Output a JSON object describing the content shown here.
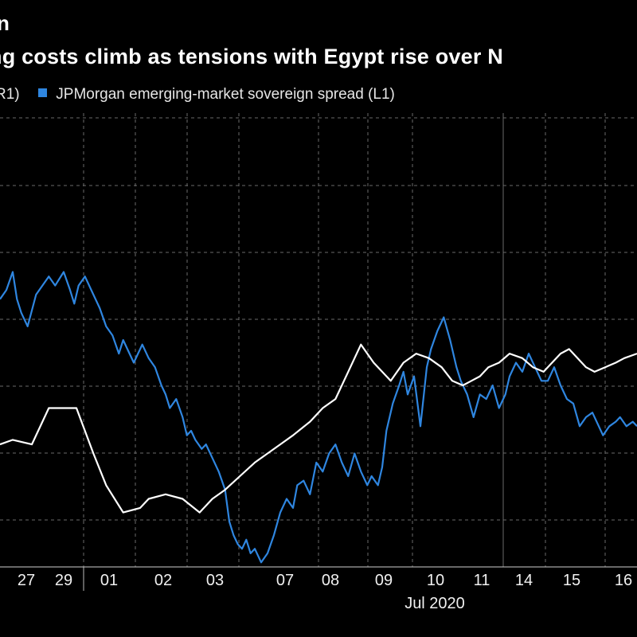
{
  "title": "n",
  "subtitle": "ng costs climb as tensions with Egypt rise over N",
  "legend": [
    {
      "label": "R1)",
      "color": "#ffffff"
    },
    {
      "label": "JPMorgan emerging-market sovereign spread (L1)",
      "color": "#2f86e0"
    }
  ],
  "chart_data": {
    "type": "line",
    "x_ticks": [
      "27",
      "29",
      "01",
      "02",
      "03",
      "07",
      "08",
      "09",
      "10",
      "11",
      "14",
      "15",
      "16"
    ],
    "x_group_label": "Jul 2020",
    "series": [
      {
        "name": "JPMorgan emerging-market sovereign spread (L1)",
        "axis": "L1",
        "color": "#2f86e0",
        "values": [
          [
            26.0,
            59
          ],
          [
            26.3,
            61
          ],
          [
            26.6,
            65
          ],
          [
            26.8,
            59
          ],
          [
            27.0,
            56
          ],
          [
            27.3,
            53
          ],
          [
            27.7,
            60
          ],
          [
            28.0,
            62
          ],
          [
            28.3,
            64
          ],
          [
            28.6,
            62
          ],
          [
            29.0,
            65
          ],
          [
            29.3,
            61
          ],
          [
            29.5,
            58
          ],
          [
            29.7,
            62
          ],
          [
            30.0,
            64
          ],
          [
            30.4,
            60
          ],
          [
            30.7,
            57
          ],
          [
            31.0,
            53
          ],
          [
            31.3,
            51
          ],
          [
            31.6,
            47
          ],
          [
            31.8,
            50
          ],
          [
            32.0,
            48
          ],
          [
            32.3,
            45
          ],
          [
            32.7,
            49
          ],
          [
            33.0,
            46
          ],
          [
            33.3,
            44
          ],
          [
            33.6,
            40
          ],
          [
            33.8,
            38
          ],
          [
            34.0,
            35
          ],
          [
            34.3,
            37
          ],
          [
            34.6,
            33
          ],
          [
            34.8,
            29
          ],
          [
            35.0,
            30
          ],
          [
            35.2,
            28
          ],
          [
            35.5,
            26
          ],
          [
            35.7,
            27
          ],
          [
            36.0,
            24
          ],
          [
            36.3,
            21
          ],
          [
            36.6,
            17
          ],
          [
            36.8,
            10
          ],
          [
            37.0,
            7
          ],
          [
            37.2,
            5
          ],
          [
            37.4,
            4
          ],
          [
            37.6,
            6
          ],
          [
            37.8,
            3
          ],
          [
            38.0,
            4
          ],
          [
            38.3,
            1
          ],
          [
            38.6,
            3
          ],
          [
            38.9,
            7
          ],
          [
            39.2,
            12
          ],
          [
            39.5,
            15
          ],
          [
            39.8,
            13
          ],
          [
            40.0,
            18
          ],
          [
            40.3,
            19
          ],
          [
            40.6,
            16
          ],
          [
            40.9,
            23
          ],
          [
            41.2,
            21
          ],
          [
            41.5,
            25
          ],
          [
            41.8,
            27
          ],
          [
            42.1,
            23
          ],
          [
            42.4,
            20
          ],
          [
            42.7,
            25
          ],
          [
            43.0,
            21
          ],
          [
            43.3,
            18
          ],
          [
            43.5,
            20
          ],
          [
            43.8,
            18
          ],
          [
            44.0,
            22
          ],
          [
            44.2,
            30
          ],
          [
            44.5,
            36
          ],
          [
            44.8,
            40
          ],
          [
            45.0,
            43
          ],
          [
            45.2,
            38
          ],
          [
            45.5,
            42
          ],
          [
            45.8,
            31
          ],
          [
            46.1,
            44
          ],
          [
            46.3,
            48
          ],
          [
            46.6,
            52
          ],
          [
            46.9,
            55
          ],
          [
            47.2,
            50
          ],
          [
            47.5,
            44
          ],
          [
            47.7,
            41
          ],
          [
            48.0,
            38
          ],
          [
            48.3,
            33
          ],
          [
            48.6,
            38
          ],
          [
            48.9,
            37
          ],
          [
            49.2,
            40
          ],
          [
            49.5,
            35
          ],
          [
            49.8,
            38
          ],
          [
            50.0,
            42
          ],
          [
            50.3,
            45
          ],
          [
            50.6,
            43
          ],
          [
            50.9,
            47
          ],
          [
            51.2,
            44
          ],
          [
            51.5,
            41
          ],
          [
            51.8,
            41
          ],
          [
            52.1,
            44
          ],
          [
            52.4,
            40
          ],
          [
            52.7,
            37
          ],
          [
            53.0,
            36
          ],
          [
            53.3,
            31
          ],
          [
            53.6,
            33
          ],
          [
            53.9,
            34
          ],
          [
            54.2,
            31
          ],
          [
            54.4,
            29
          ],
          [
            54.7,
            31
          ],
          [
            55.0,
            32
          ],
          [
            55.2,
            33
          ],
          [
            55.5,
            31
          ],
          [
            55.8,
            32
          ],
          [
            56.0,
            31
          ]
        ]
      },
      {
        "name": "R1",
        "axis": "R1",
        "color": "#ffffff",
        "values": [
          [
            26.0,
            27
          ],
          [
            26.6,
            28
          ],
          [
            27.5,
            27
          ],
          [
            28.3,
            35
          ],
          [
            29.0,
            35
          ],
          [
            29.6,
            35
          ],
          [
            30.4,
            25
          ],
          [
            31.0,
            18
          ],
          [
            31.8,
            12
          ],
          [
            32.6,
            13
          ],
          [
            33.0,
            15
          ],
          [
            33.8,
            16
          ],
          [
            34.6,
            15
          ],
          [
            35.4,
            12
          ],
          [
            36.0,
            15
          ],
          [
            36.6,
            17
          ],
          [
            37.3,
            20
          ],
          [
            38.0,
            23
          ],
          [
            38.6,
            25
          ],
          [
            39.2,
            27
          ],
          [
            39.8,
            29
          ],
          [
            40.6,
            32
          ],
          [
            41.2,
            35
          ],
          [
            41.8,
            37
          ],
          [
            42.5,
            44
          ],
          [
            43.0,
            49
          ],
          [
            43.6,
            45
          ],
          [
            44.4,
            41
          ],
          [
            45.0,
            45
          ],
          [
            45.6,
            47
          ],
          [
            46.2,
            46
          ],
          [
            46.8,
            44
          ],
          [
            47.3,
            41
          ],
          [
            47.8,
            40
          ],
          [
            48.2,
            41
          ],
          [
            48.6,
            42
          ],
          [
            49.0,
            44
          ],
          [
            49.5,
            45
          ],
          [
            50.0,
            47
          ],
          [
            50.6,
            46
          ],
          [
            51.1,
            44
          ],
          [
            51.6,
            43
          ],
          [
            52.0,
            45
          ],
          [
            52.4,
            47
          ],
          [
            52.8,
            48
          ],
          [
            53.2,
            46
          ],
          [
            53.6,
            44
          ],
          [
            54.0,
            43
          ],
          [
            54.5,
            44
          ],
          [
            55.0,
            45
          ],
          [
            55.4,
            46
          ],
          [
            56.0,
            47
          ]
        ]
      }
    ],
    "grid": true,
    "legend_position": "top-left"
  }
}
